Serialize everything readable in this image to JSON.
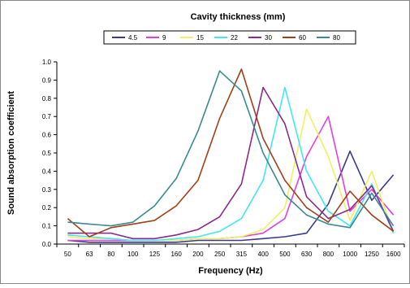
{
  "chart_data": {
    "type": "line",
    "title": "Cavity thickness (mm)",
    "xlabel": "Frequency (Hz)",
    "ylabel": "Sound absorption coefficient",
    "ylim": [
      0,
      1
    ],
    "yticks": [
      "0.0",
      "0.1",
      "0.2",
      "0.3",
      "0.4",
      "0.5",
      "0.6",
      "0.7",
      "0.8",
      "0.9",
      "1.0"
    ],
    "categories": [
      "50",
      "63",
      "80",
      "100",
      "125",
      "160",
      "200",
      "250",
      "315",
      "400",
      "500",
      "630",
      "800",
      "1000",
      "1250",
      "1600"
    ],
    "grid": false,
    "legend_position": "top",
    "series": [
      {
        "name": "4.5",
        "color": "#3a3a8c",
        "values": [
          0.02,
          0.01,
          0.01,
          0.01,
          0.01,
          0.01,
          0.02,
          0.02,
          0.02,
          0.03,
          0.04,
          0.06,
          0.22,
          0.51,
          0.24,
          0.38
        ]
      },
      {
        "name": "9",
        "color": "#e040e0",
        "values": [
          0.02,
          0.02,
          0.02,
          0.02,
          0.02,
          0.02,
          0.03,
          0.03,
          0.04,
          0.06,
          0.14,
          0.48,
          0.7,
          0.18,
          0.3,
          0.16
        ]
      },
      {
        "name": "15",
        "color": "#f0f060",
        "values": [
          0.04,
          0.03,
          0.03,
          0.02,
          0.02,
          0.02,
          0.03,
          0.03,
          0.04,
          0.08,
          0.2,
          0.74,
          0.48,
          0.13,
          0.4,
          0.06
        ]
      },
      {
        "name": "22",
        "color": "#40e8f0",
        "values": [
          0.05,
          0.04,
          0.03,
          0.02,
          0.02,
          0.03,
          0.04,
          0.07,
          0.14,
          0.35,
          0.86,
          0.4,
          0.18,
          0.1,
          0.33,
          0.06
        ]
      },
      {
        "name": "30",
        "color": "#8a2a8a",
        "values": [
          0.06,
          0.06,
          0.06,
          0.03,
          0.03,
          0.05,
          0.08,
          0.15,
          0.33,
          0.86,
          0.66,
          0.26,
          0.14,
          0.19,
          0.32,
          0.07
        ]
      },
      {
        "name": "60",
        "color": "#a0401a",
        "values": [
          0.14,
          0.04,
          0.09,
          0.11,
          0.13,
          0.21,
          0.35,
          0.69,
          0.96,
          0.58,
          0.35,
          0.2,
          0.12,
          0.29,
          0.16,
          0.07
        ]
      },
      {
        "name": "80",
        "color": "#3a8a90",
        "values": [
          0.12,
          0.11,
          0.1,
          0.12,
          0.21,
          0.36,
          0.62,
          0.95,
          0.84,
          0.5,
          0.27,
          0.16,
          0.11,
          0.09,
          0.28,
          0.1
        ]
      }
    ]
  }
}
